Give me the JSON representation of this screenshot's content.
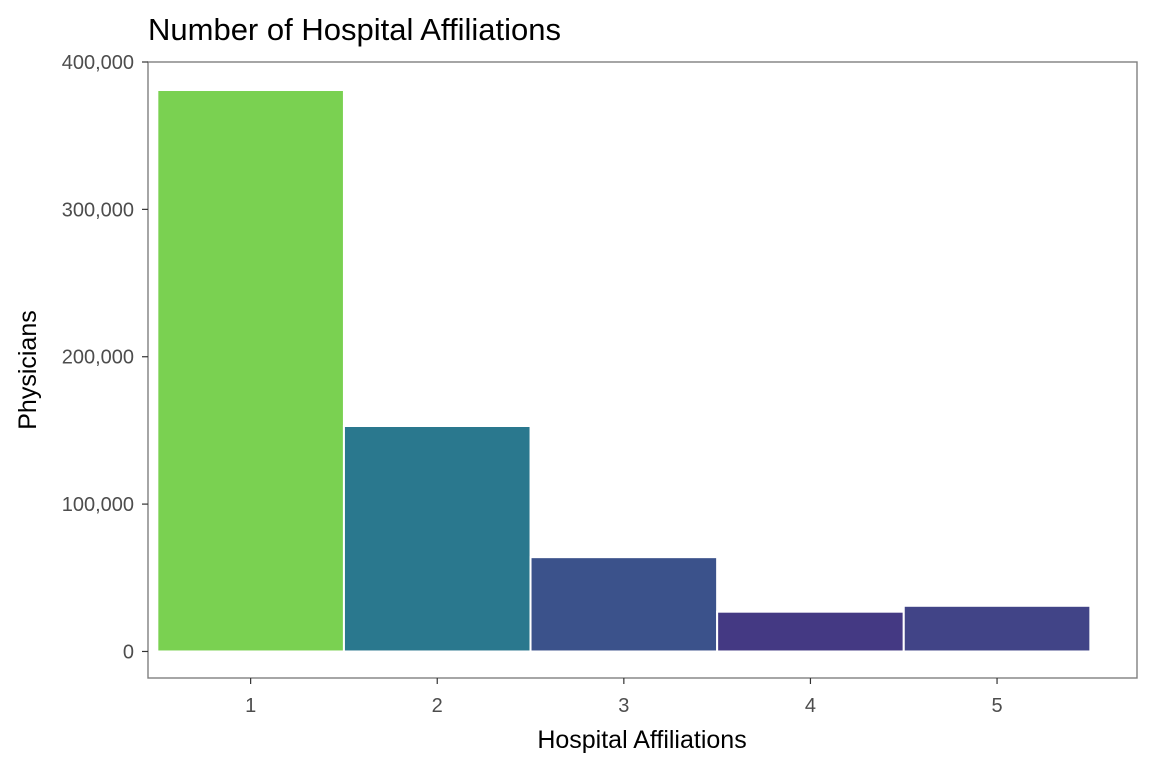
{
  "chart_data": {
    "type": "bar",
    "title": "Number of Hospital Affiliations",
    "xlabel": "Hospital Affiliations",
    "ylabel": "Physicians",
    "categories": [
      "1",
      "2",
      "3",
      "4",
      "5"
    ],
    "values": [
      381000,
      153000,
      64000,
      27000,
      31000
    ],
    "colors": [
      "#7ad151",
      "#2a788e",
      "#3b528b",
      "#443983",
      "#414487"
    ],
    "ylim": [
      -18000,
      400000
    ],
    "xlim": [
      0.45,
      5.75
    ],
    "yticks": [
      0,
      100000,
      200000,
      300000,
      400000
    ],
    "ytick_labels": [
      "0",
      "100,000",
      "200,000",
      "300,000",
      "400,000"
    ],
    "grid": false,
    "legend": "none"
  }
}
